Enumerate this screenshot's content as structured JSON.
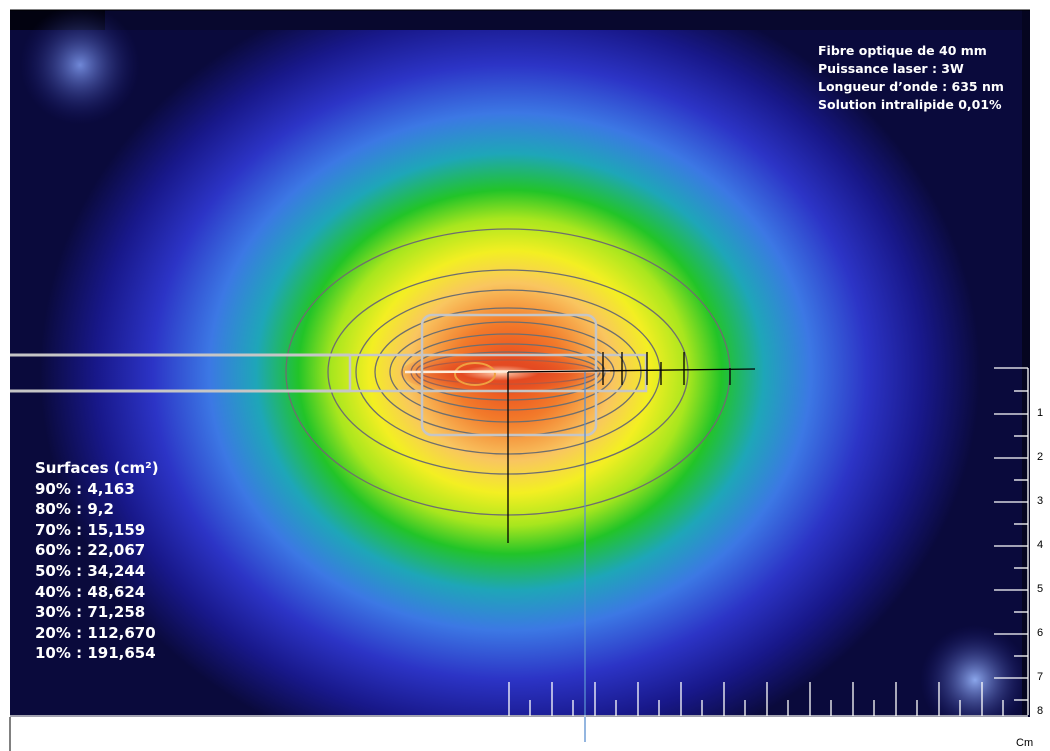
{
  "info": {
    "lines": [
      "Fibre optique de 40  mm",
      "Puissance laser : 3W",
      "Longueur d’onde : 635  nm",
      "Solution intralipide 0,01%"
    ]
  },
  "surfaces": {
    "title": "Surfaces (cm²)",
    "items": [
      "90% : 4,163",
      "80% : 9,2",
      "70% : 15,159",
      "60% : 22,067",
      "50% : 34,244",
      "40% : 48,624",
      "30% : 71,258",
      "20% : 112,670",
      "10% : 191,654"
    ]
  },
  "scale": {
    "unit": "Cm",
    "labels": [
      "1",
      "2",
      "3",
      "4",
      "5",
      "6",
      "7",
      "8"
    ]
  },
  "colors": {
    "background": "#0a0a3a",
    "core": "#d83a1a",
    "contour": "#707070",
    "fiber": "#c8c8c8"
  }
}
